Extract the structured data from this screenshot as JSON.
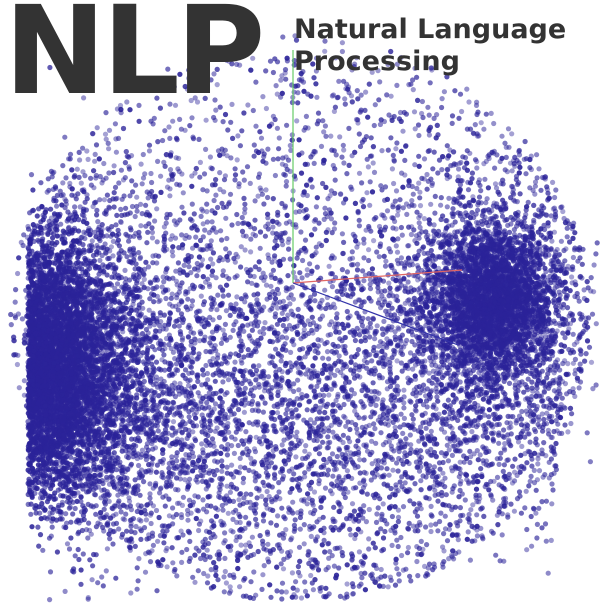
{
  "logo": {
    "text": "NLP"
  },
  "subtitle": {
    "line1": "Natural Language",
    "line2": "Processing"
  },
  "colors": {
    "background": "#ffffff",
    "text": "#333333",
    "points": "#2b2399",
    "axis_x": "#e06666",
    "axis_y": "#66cc66",
    "axis_z": "#3333aa"
  },
  "scene": {
    "description_kind": "3D scatter point cloud with origin axes",
    "dense_clusters": [
      "left-edge",
      "right-center"
    ]
  }
}
